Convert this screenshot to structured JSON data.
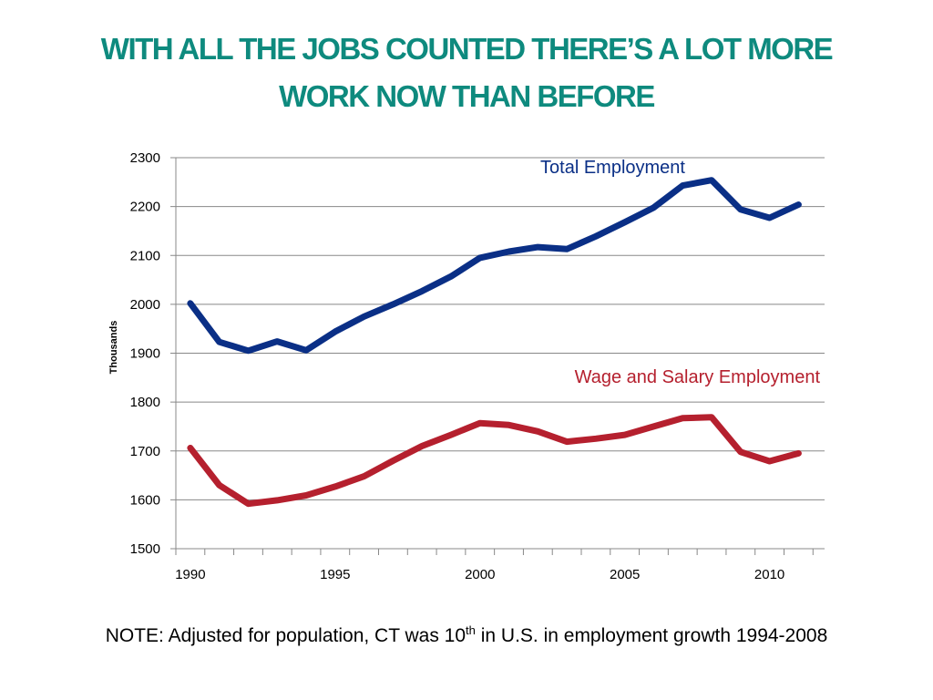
{
  "title": {
    "line1": "WITH ALL THE JOBS COUNTED THERE’S A LOT MORE",
    "line2": "WORK NOW THAN BEFORE"
  },
  "colors": {
    "title": "#0e8a7e",
    "total": "#0a2f86",
    "wage": "#b5202e",
    "grid": "#888888"
  },
  "chart_data": {
    "type": "line",
    "title": "",
    "xlabel": "",
    "ylabel": "Thousands",
    "xlim": [
      1989.5,
      2011.9
    ],
    "ylim": [
      1500,
      2300
    ],
    "yticks": [
      1500,
      1600,
      1700,
      1800,
      1900,
      2000,
      2100,
      2200,
      2300
    ],
    "xtick_labels": [
      1990,
      1995,
      2000,
      2005,
      2010
    ],
    "grid": true,
    "x": [
      1990,
      1991,
      1992,
      1993,
      1994,
      1995,
      1996,
      1997,
      1998,
      1999,
      2000,
      2001,
      2002,
      2003,
      2004,
      2005,
      2006,
      2007,
      2008,
      2009,
      2010,
      2011
    ],
    "series": [
      {
        "name": "Total Employment",
        "color": "#0a2f86",
        "values": [
          2002,
          1923,
          1905,
          1924,
          1906,
          1944,
          1975,
          2000,
          2027,
          2057,
          2095,
          2108,
          2117,
          2113,
          2139,
          2168,
          2198,
          2243,
          2254,
          2194,
          2177,
          2204
        ]
      },
      {
        "name": "Wage and Salary Employment",
        "color": "#b5202e",
        "values": [
          1706,
          1630,
          1592,
          1599,
          1609,
          1627,
          1648,
          1680,
          1710,
          1733,
          1757,
          1753,
          1740,
          1719,
          1725,
          1733,
          1750,
          1767,
          1769,
          1698,
          1679,
          1695
        ]
      }
    ]
  },
  "note": {
    "before": "NOTE: Adjusted for population, CT was 10",
    "sup": "th",
    "after": " in U.S. in employment growth 1994-2008"
  }
}
